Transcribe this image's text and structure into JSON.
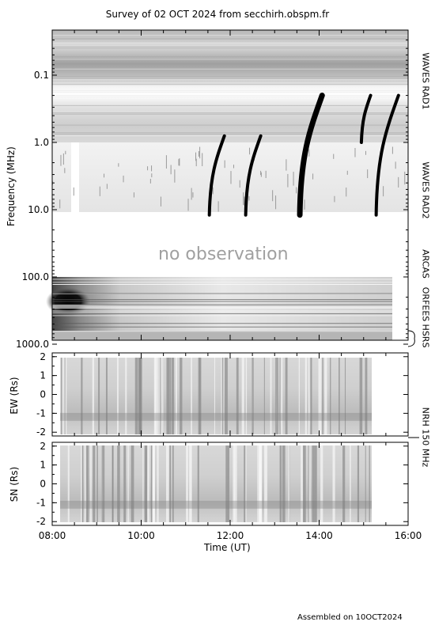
{
  "title": "Survey of 02 OCT 2024 from secchirh.obspm.fr",
  "footer": "Assembled on 10OCT2024",
  "no_observation": "no observation",
  "chart_data": [
    {
      "type": "heatmap",
      "panel": "dynamic spectrum",
      "ylabel": "Frequency (MHz)",
      "yscale": "log",
      "ylim": [
        0.02,
        1300
      ],
      "y_inverted": true,
      "yticks": [
        0.1,
        1.0,
        10.0,
        100.0,
        1000.0
      ],
      "ytick_labels": [
        "0.1",
        "1.0",
        "10.0",
        "100.0",
        "1000.0"
      ],
      "instruments": [
        "WAVES RAD1",
        "WAVES RAD2",
        "ARCAS",
        "ORFEES",
        "HSRS"
      ],
      "bursts": [
        {
          "time": "11:33",
          "f_start": 0.8,
          "f_end": 12.0
        },
        {
          "time": "12:22",
          "f_start": 0.8,
          "f_end": 12.0
        },
        {
          "time": "13:35",
          "f_start": 0.2,
          "f_end": 12.0
        },
        {
          "time": "14:58",
          "f_start": 0.2,
          "f_end": 1.0
        },
        {
          "time": "15:18",
          "f_start": 0.2,
          "f_end": 12.0
        }
      ]
    },
    {
      "type": "heatmap",
      "panel": "NRH EW",
      "ylabel": "EW (Rs)",
      "ylim": [
        -2.2,
        2.2
      ],
      "yticks": [
        -2,
        -1,
        0,
        1,
        2
      ]
    },
    {
      "type": "heatmap",
      "panel": "NRH SN",
      "ylabel": "SN (Rs)",
      "ylim": [
        -2.2,
        2.2
      ],
      "yticks": [
        -2,
        -1,
        0,
        1,
        2
      ],
      "xlabel": "Time (UT)",
      "xlim": [
        "08:00",
        "16:00"
      ],
      "xticks": [
        "08:00",
        "10:00",
        "12:00",
        "14:00",
        "16:00"
      ]
    }
  ],
  "nrh_label": "NRH 150 MHz"
}
